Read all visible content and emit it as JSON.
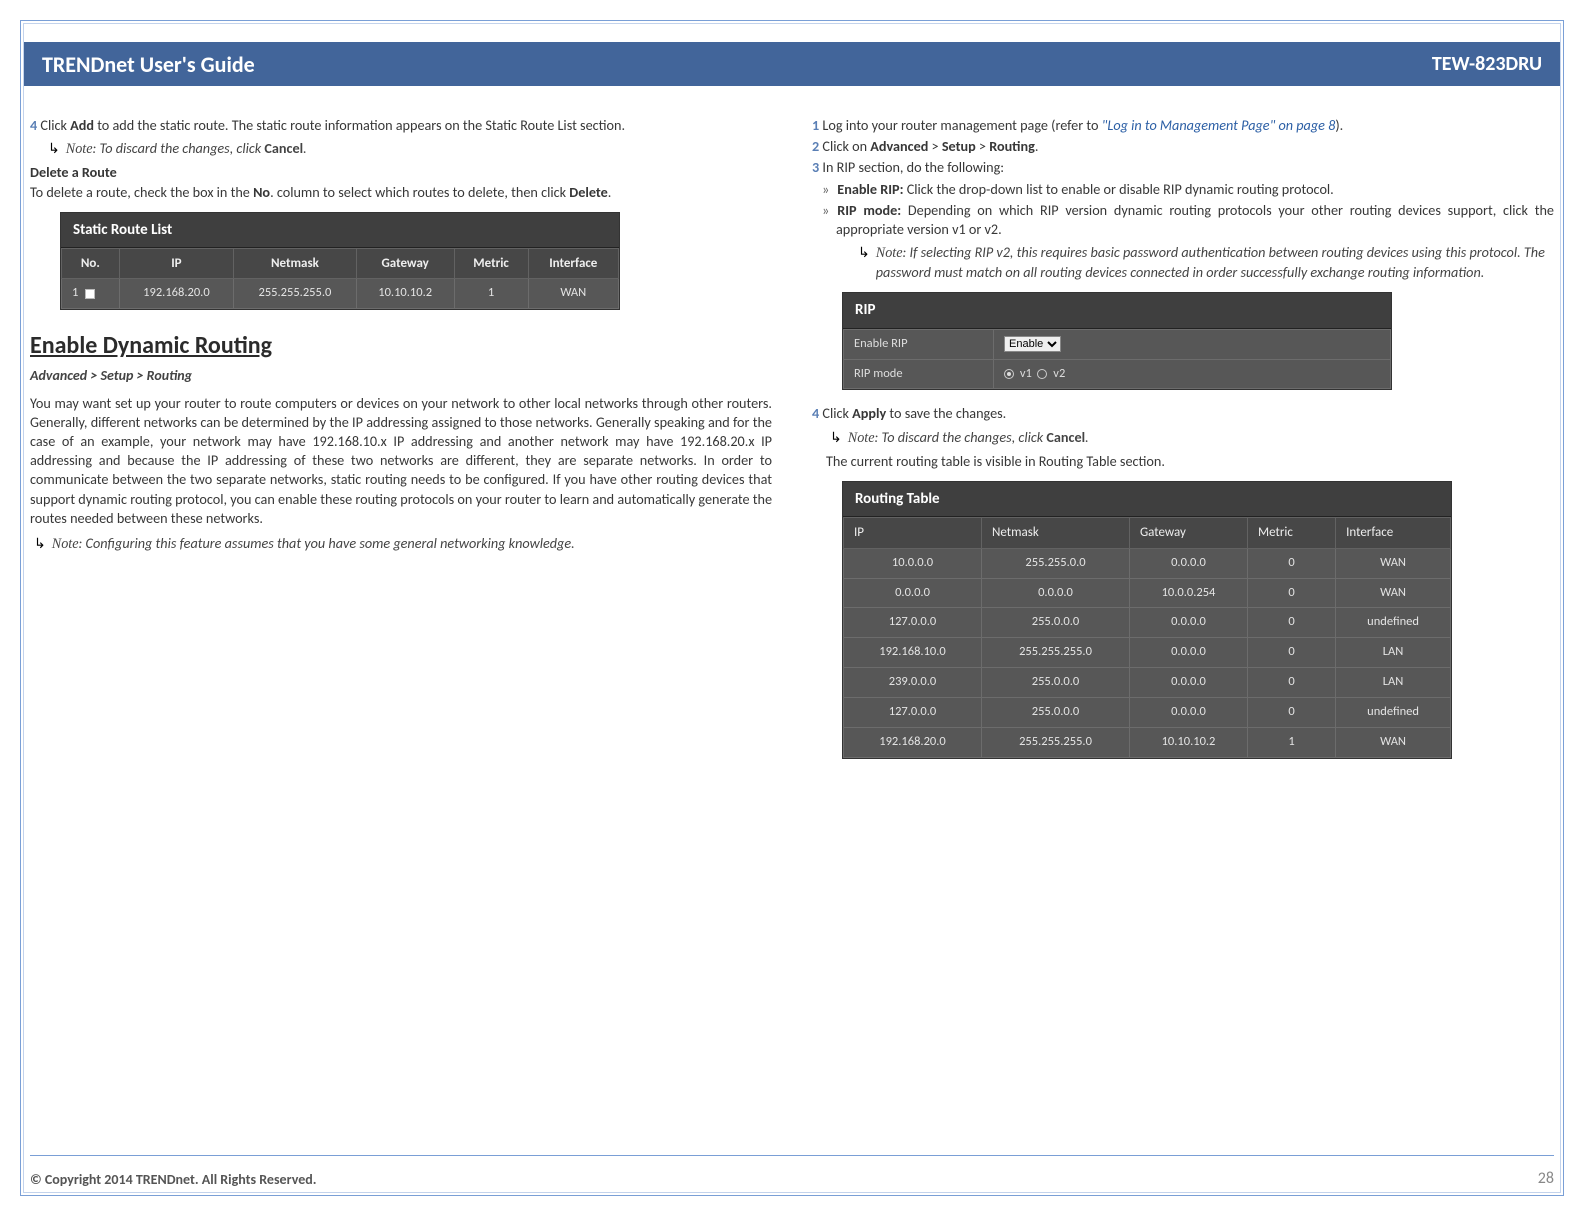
{
  "header": {
    "left": "TRENDnet User's Guide",
    "right": "TEW-823DRU"
  },
  "footer": {
    "copyright": "© Copyright 2014 TRENDnet. All Rights Reserved.",
    "page": "28"
  },
  "left": {
    "step4_num": "4",
    "step4_a": " Click ",
    "step4_b": "Add",
    "step4_c": " to add the static route. The static route information appears on the Static Route List section.",
    "note1_label": "Note",
    "note1_rest": ": To discard the changes, click ",
    "note1_bold": "Cancel",
    "note1_end": ".",
    "delroute_head": "Delete a Route",
    "delroute_a": "To delete a route, check the box in the ",
    "delroute_b": "No",
    "delroute_c": ". column to select which routes to delete, then click ",
    "delroute_d": "Delete",
    "delroute_e": ".",
    "srl": {
      "title": "Static Route List",
      "cols": [
        "No.",
        "IP",
        "Netmask",
        "Gateway",
        "Metric",
        "Interface"
      ],
      "row": [
        "1",
        "192.168.20.0",
        "255.255.255.0",
        "10.10.10.2",
        "1",
        "WAN"
      ]
    },
    "section": "Enable Dynamic Routing",
    "breadcrumb": "Advanced > Setup > Routing",
    "body": "You may want set up your router to route computers or devices on your network to other local networks through other routers. Generally, different networks can be determined by the IP addressing assigned to those networks. Generally speaking and for the case of an example, your network may have 192.168.10.x IP addressing and another network may have 192.168.20.x IP addressing and because the IP addressing of these two networks are different, they are separate networks. In order to communicate between the two separate networks, static routing needs to be configured. If you have other routing devices that support dynamic routing protocol, you can enable these routing protocols on your router to learn and automatically generate the routes needed between these networks.",
    "note2_label": "Note",
    "note2_rest": ": Configuring this feature assumes that you have some general networking knowledge."
  },
  "right": {
    "s1_num": "1",
    "s1_a": " Log into your router management page (refer to ",
    "s1_link": "\"Log in to Management Page\" on page 8",
    "s1_b": ").",
    "s2_num": "2",
    "s2_a": " Click on ",
    "s2_b": "Advanced",
    "s2_c": " > ",
    "s2_d": "Setup",
    "s2_e": " > ",
    "s2_f": "Routing",
    "s2_g": ".",
    "s3_num": "3",
    "s3_a": " In RIP section, do the following:",
    "b1_a": "Enable RIP:",
    "b1_b": " Click the drop-down list to enable or disable RIP dynamic routing protocol.",
    "b2_a": "RIP mode:",
    "b2_b": " Depending on which RIP version dynamic routing protocols your other routing devices support, click the appropriate version v1 or v2.",
    "note3_label": "Note",
    "note3_rest": ": If selecting RIP v2, this requires basic password authentication between routing devices using this protocol. The password must match on all routing devices connected in order successfully exchange routing information.",
    "rip": {
      "title": "RIP",
      "rows": [
        {
          "label": "Enable RIP",
          "type": "select",
          "value": "Enable"
        },
        {
          "label": "RIP mode",
          "type": "radio",
          "options": [
            "v1",
            "v2"
          ],
          "selected": "v1"
        }
      ]
    },
    "s4_num": "4",
    "s4_a": " Click ",
    "s4_b": "Apply",
    "s4_c": " to save the changes.",
    "note4_label": "Note",
    "note4_rest": ": To discard the changes, click ",
    "note4_bold": "Cancel",
    "note4_end": ".",
    "curr": "The current routing table is visible in Routing Table section.",
    "rtable": {
      "title": "Routing Table",
      "cols": [
        "IP",
        "Netmask",
        "Gateway",
        "Metric",
        "Interface"
      ],
      "rows": [
        [
          "10.0.0.0",
          "255.255.0.0",
          "0.0.0.0",
          "0",
          "WAN"
        ],
        [
          "0.0.0.0",
          "0.0.0.0",
          "10.0.0.254",
          "0",
          "WAN"
        ],
        [
          "127.0.0.0",
          "255.0.0.0",
          "0.0.0.0",
          "0",
          "undefined"
        ],
        [
          "192.168.10.0",
          "255.255.255.0",
          "0.0.0.0",
          "0",
          "LAN"
        ],
        [
          "239.0.0.0",
          "255.0.0.0",
          "0.0.0.0",
          "0",
          "LAN"
        ],
        [
          "127.0.0.0",
          "255.0.0.0",
          "0.0.0.0",
          "0",
          "undefined"
        ],
        [
          "192.168.20.0",
          "255.255.255.0",
          "10.10.10.2",
          "1",
          "WAN"
        ]
      ]
    }
  }
}
